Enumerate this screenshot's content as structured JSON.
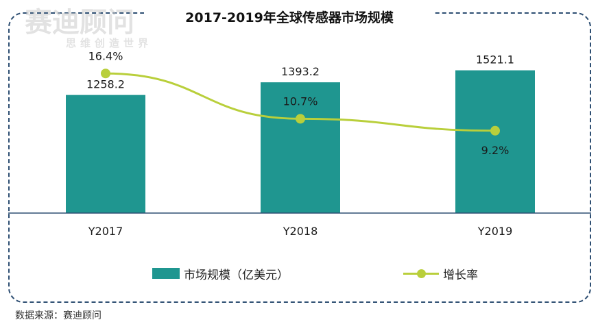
{
  "title": "2017-2019年全球传感器市场规模",
  "source": "数据来源：赛迪顾问",
  "watermark": {
    "main": "赛迪顾问",
    "sub": "思维创造世界"
  },
  "colors": {
    "bar": "#1f9690",
    "line": "#b9cf3b",
    "axis": "#2d4e72",
    "frame": "#2d4e72"
  },
  "chart_data": {
    "type": "bar",
    "title": "2017-2019年全球传感器市场规模",
    "categories": [
      "Y2017",
      "Y2018",
      "Y2019"
    ],
    "series": [
      {
        "name": "市场规模（亿美元）",
        "type": "bar",
        "values": [
          1258.2,
          1393.2,
          1521.1
        ],
        "labels": [
          "1258.2",
          "1393.2",
          "1521.1"
        ],
        "axis": "left"
      },
      {
        "name": "增长率",
        "type": "line",
        "values": [
          16.4,
          10.7,
          9.2
        ],
        "labels": [
          "16.4%",
          "10.7%",
          "9.2%"
        ],
        "axis": "right"
      }
    ],
    "legend": "bottom",
    "grid": false
  }
}
